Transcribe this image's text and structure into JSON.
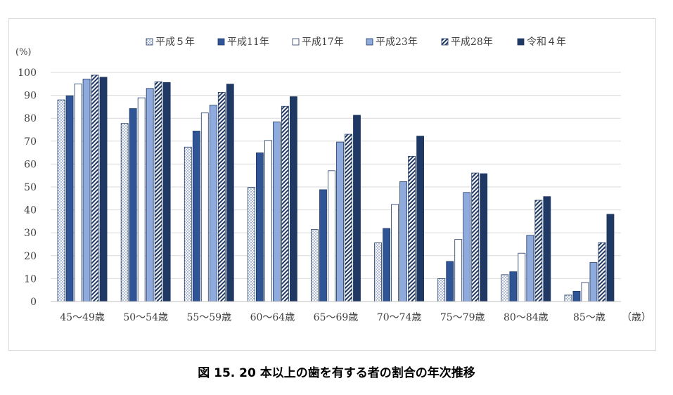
{
  "chart_data": {
    "type": "bar",
    "title": "図 15.  20 本以上の歯を有する者の割合の年次推移",
    "ylabel": "(%)",
    "xlabel": "（歳）",
    "ylim": [
      0,
      100
    ],
    "yticks": [
      0,
      10,
      20,
      30,
      40,
      50,
      60,
      70,
      80,
      90,
      100
    ],
    "grid": true,
    "legend_position": "top",
    "categories": [
      "45〜49歳",
      "50〜54歳",
      "55〜59歳",
      "60〜64歳",
      "65〜69歳",
      "70〜74歳",
      "75〜79歳",
      "80〜84歳",
      "85〜歳"
    ],
    "series": [
      {
        "name": "平成５年",
        "pattern": "dots",
        "values": [
          88.0,
          77.7,
          67.4,
          49.8,
          31.4,
          25.6,
          10.0,
          11.7,
          2.8
        ]
      },
      {
        "name": "平成11年",
        "pattern": "solid-mid",
        "values": [
          89.8,
          84.2,
          74.4,
          64.9,
          48.8,
          31.9,
          17.5,
          13.0,
          4.5
        ]
      },
      {
        "name": "平成17年",
        "pattern": "white",
        "values": [
          95.0,
          88.9,
          82.3,
          70.3,
          57.1,
          42.4,
          27.1,
          21.1,
          8.3
        ]
      },
      {
        "name": "平成23年",
        "pattern": "solid-light",
        "values": [
          97.1,
          93.0,
          85.7,
          78.4,
          69.6,
          52.3,
          47.6,
          28.9,
          17.0
        ]
      },
      {
        "name": "平成28年",
        "pattern": "hatch",
        "values": [
          98.8,
          95.9,
          91.3,
          85.2,
          73.0,
          63.4,
          56.1,
          44.2,
          25.7
        ]
      },
      {
        "name": "令和４年",
        "pattern": "solid-dark",
        "values": [
          97.9,
          95.6,
          94.9,
          89.4,
          81.3,
          72.2,
          55.8,
          45.8,
          38.1
        ]
      }
    ],
    "colors": {
      "dark": "#1f3864",
      "mid": "#2f5597",
      "light": "#8faadc",
      "grid": "#d9d9d9",
      "axis": "#bfbfbf"
    }
  }
}
